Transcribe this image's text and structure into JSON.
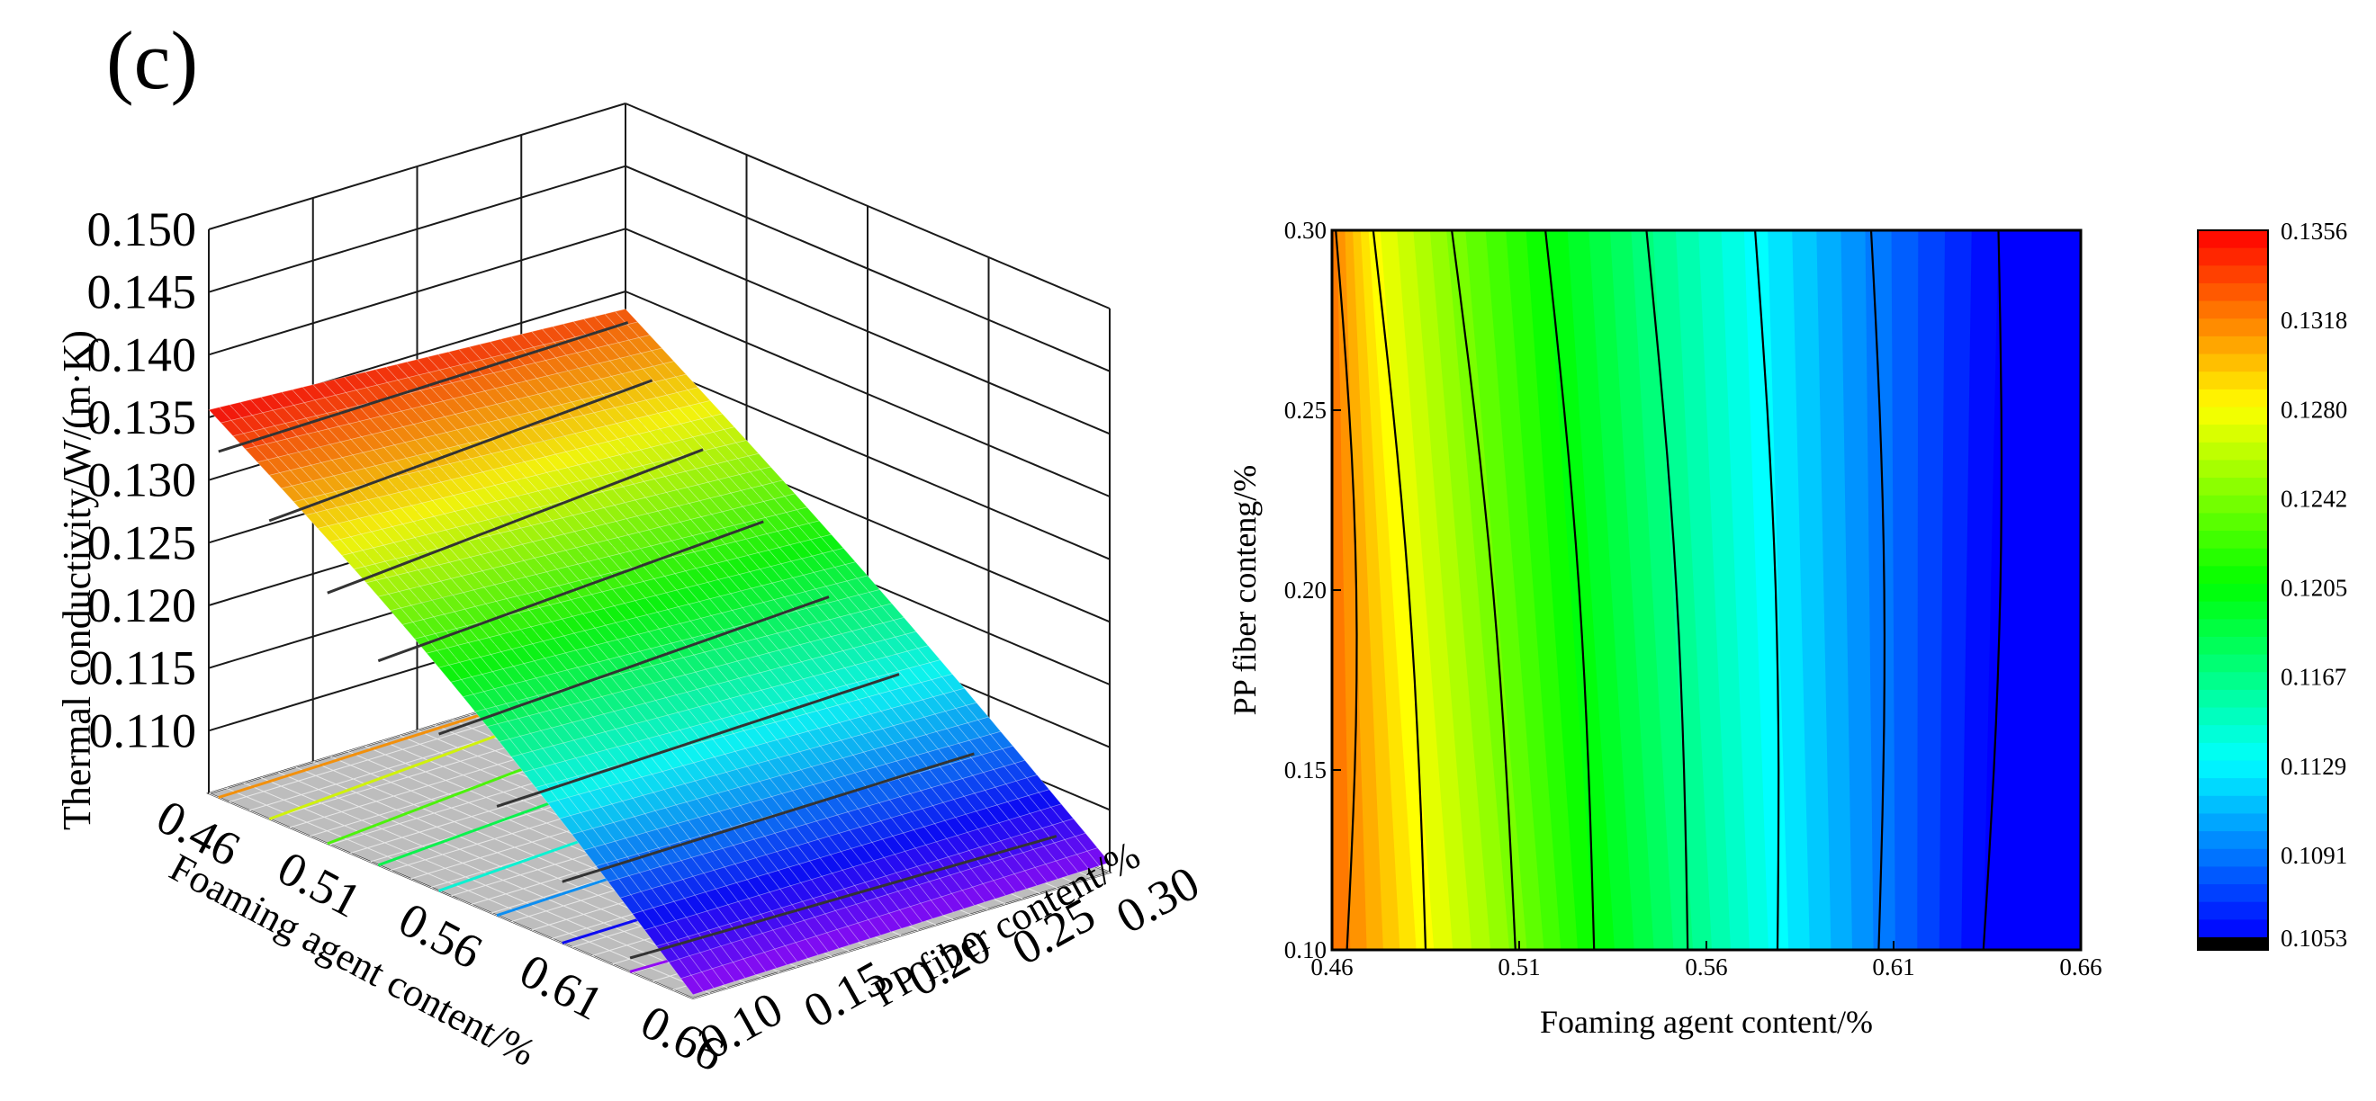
{
  "figure": {
    "panel_label": "(c)"
  },
  "chart_data": [
    {
      "type": "surface",
      "x_key": "foaming_agent",
      "y_key": "pp_fiber",
      "xlabel": "Foaming agent content/%",
      "ylabel": "PP fiber content/%",
      "zlabel": "Thermal conductivity/W/(m·K)",
      "x_ticks": [
        "0.46",
        "0.51",
        "0.56",
        "0.61",
        "0.66"
      ],
      "y_ticks": [
        "0.10",
        "0.15",
        "0.20",
        "0.25",
        "0.30"
      ],
      "z_ticks": [
        "0.110",
        "0.115",
        "0.120",
        "0.125",
        "0.130",
        "0.135",
        "0.140",
        "0.145",
        "0.150"
      ],
      "x_range": [
        0.46,
        0.66
      ],
      "y_range": [
        0.1,
        0.3
      ],
      "z_range": [
        0.105,
        0.15
      ],
      "grid": true,
      "surface_corners": [
        {
          "foaming_agent": 0.46,
          "pp_fiber": 0.1,
          "thermal_conductivity": 0.1356
        },
        {
          "foaming_agent": 0.46,
          "pp_fiber": 0.3,
          "thermal_conductivity": 0.1336
        },
        {
          "foaming_agent": 0.66,
          "pp_fiber": 0.1,
          "thermal_conductivity": 0.1053
        },
        {
          "foaming_agent": 0.66,
          "pp_fiber": 0.3,
          "thermal_conductivity": 0.1058
        }
      ]
    },
    {
      "type": "contour",
      "xlabel": "Foaming agent content/%",
      "ylabel": "PP fiber conteng/%",
      "x_ticks": [
        "0.46",
        "0.51",
        "0.56",
        "0.61",
        "0.66"
      ],
      "y_ticks": [
        "0.10",
        "0.15",
        "0.20",
        "0.25",
        "0.30"
      ],
      "x_range": [
        0.46,
        0.66
      ],
      "y_range": [
        0.1,
        0.3
      ],
      "colorbar": {
        "range": [
          0.1053,
          0.1356
        ],
        "ticks": [
          "0.1053",
          "0.1091",
          "0.1129",
          "0.1167",
          "0.1205",
          "0.1242",
          "0.1280",
          "0.1318",
          "0.1356"
        ],
        "low_color": "#000000"
      },
      "contour_lines": [
        {
          "level": 0.1318,
          "at_y010": 0.464,
          "at_y030": 0.461
        },
        {
          "level": 0.128,
          "at_y010": 0.485,
          "at_y030": 0.471
        },
        {
          "level": 0.1242,
          "at_y010": 0.509,
          "at_y030": 0.492
        },
        {
          "level": 0.1205,
          "at_y010": 0.53,
          "at_y030": 0.517
        },
        {
          "level": 0.1167,
          "at_y010": 0.555,
          "at_y030": 0.544
        },
        {
          "level": 0.1129,
          "at_y010": 0.579,
          "at_y030": 0.573
        },
        {
          "level": 0.1091,
          "at_y010": 0.606,
          "at_y030": 0.604
        },
        {
          "level": 0.1053,
          "at_y010": 0.634,
          "at_y030": 0.638
        }
      ]
    }
  ]
}
